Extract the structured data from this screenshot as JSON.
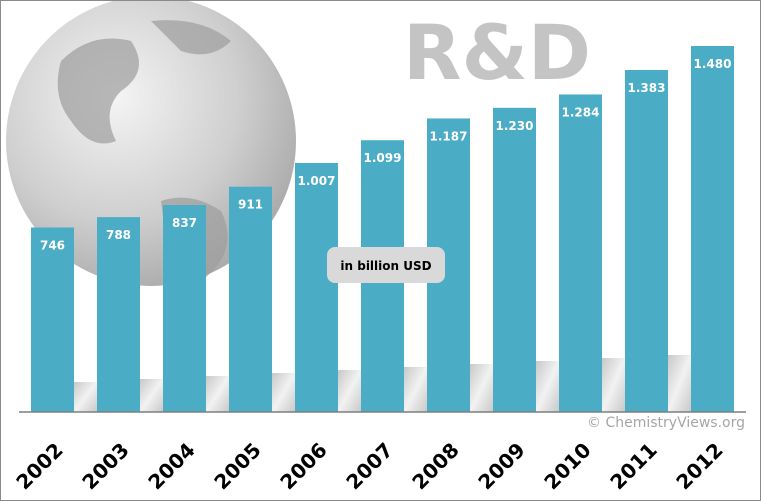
{
  "chart_data": {
    "type": "bar",
    "title": "R&D",
    "unit_label": "in billion USD",
    "categories": [
      "2002",
      "2003",
      "2004",
      "2005",
      "2006",
      "2007",
      "2008",
      "2009",
      "2010",
      "2011",
      "2012"
    ],
    "values": [
      746,
      788,
      837,
      911,
      1007,
      1099,
      1187,
      1230,
      1284,
      1383,
      1480
    ],
    "data_labels": [
      "746",
      "788",
      "837",
      "911",
      "1.007",
      "1.099",
      "1.187",
      "1.230",
      "1.284",
      "1.383",
      "1.480"
    ],
    "ylim": [
      0,
      1480
    ],
    "grid": false,
    "bar_color": "#4bacc6",
    "copyright": "© ChemistryViews.org"
  }
}
